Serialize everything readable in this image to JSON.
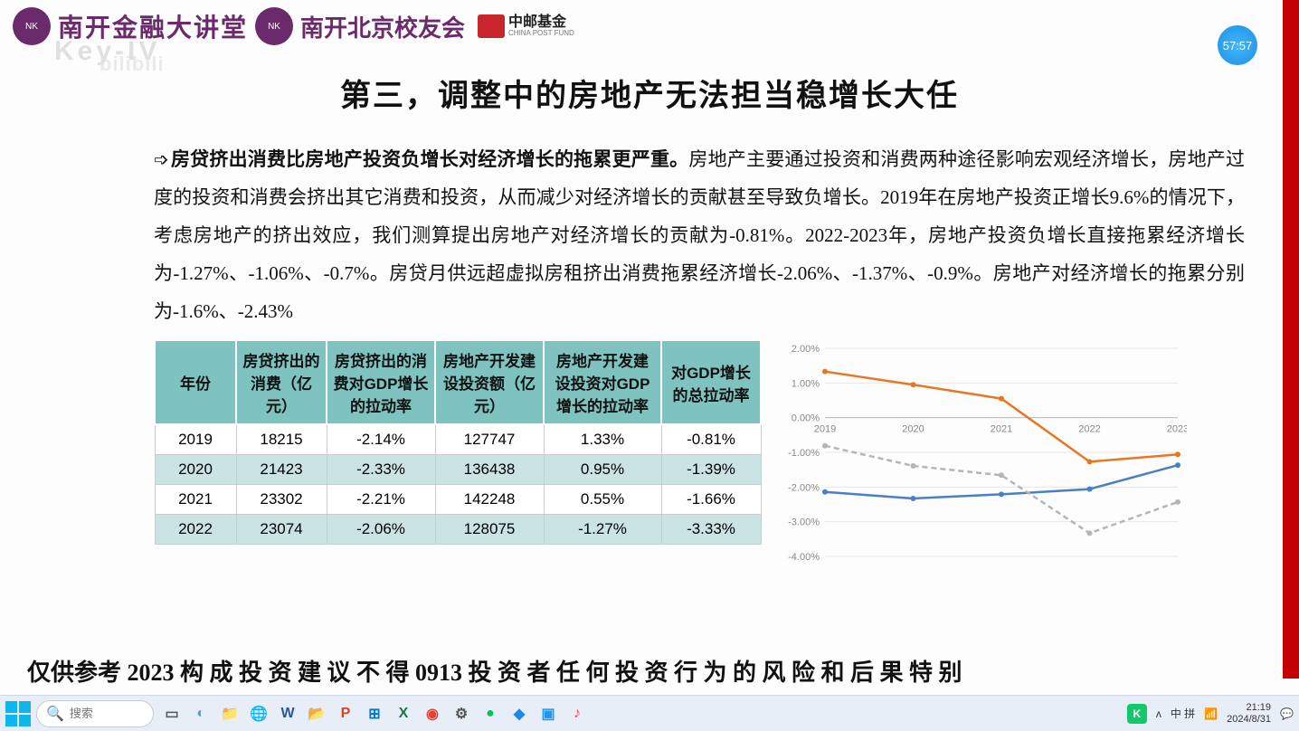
{
  "header": {
    "org1": "南开金融大讲堂",
    "org2": "南开北京校友会",
    "sponsor_cn": "中邮基金",
    "sponsor_en": "CHINA POST FUND"
  },
  "watermark1": "Key-IV",
  "watermark2": "bilibili",
  "timer": "57:57",
  "title": "第三，调整中的房地产无法担当稳增长大任",
  "paragraph_lead": "房贷挤出消费比房地产投资负增长对经济增长的拖累更严重。",
  "paragraph_body": "房地产主要通过投资和消费两种途径影响宏观经济增长，房地产过度的投资和消费会挤出其它消费和投资，从而减少对经济增长的贡献甚至导致负增长。2019年在房地产投资正增长9.6%的情况下，考虑房地产的挤出效应，我们测算提出房地产对经济增长的贡献为-0.81%。2022-2023年，房地产投资负增长直接拖累经济增长为-1.27%、-1.06%、-0.7%。房贷月供远超虚拟房租挤出消费拖累经济增长-2.06%、-1.37%、-0.9%。房地产对经济增长的拖累分别为-1.6%、-2.43%",
  "table": {
    "columns": [
      "年份",
      "房贷挤出的消费（亿元）",
      "房贷挤出的消费对GDP增长的拉动率",
      "房地产开发建设投资额（亿元）",
      "房地产开发建设投资对GDP增长的拉动率",
      "对GDP增长的总拉动率"
    ],
    "rows": [
      [
        "2019",
        "18215",
        "-2.14%",
        "127747",
        "1.33%",
        "-0.81%"
      ],
      [
        "2020",
        "21423",
        "-2.33%",
        "136438",
        "0.95%",
        "-1.39%"
      ],
      [
        "2021",
        "23302",
        "-2.21%",
        "142248",
        "0.55%",
        "-1.66%"
      ],
      [
        "2022",
        "23074",
        "-2.06%",
        "128075",
        "-1.27%",
        "-3.33%"
      ]
    ],
    "header_bg": "#7ec3bf",
    "alt_bg": "#c9e4e2"
  },
  "chart": {
    "type": "line",
    "x_categories": [
      "2019",
      "2020",
      "2021",
      "2022",
      "2023"
    ],
    "ylim": [
      -4,
      2
    ],
    "ytick_step": 1,
    "y_label_suffix": ".00%",
    "series": [
      {
        "name": "orange",
        "color": "#e87722",
        "values": [
          1.33,
          0.95,
          0.55,
          -1.27,
          -1.06
        ],
        "dash": false
      },
      {
        "name": "blue",
        "color": "#4b7fc4",
        "values": [
          -2.14,
          -2.33,
          -2.21,
          -2.06,
          -1.37
        ],
        "dash": false
      },
      {
        "name": "gray",
        "color": "#b5b5b5",
        "values": [
          -0.81,
          -1.39,
          -1.66,
          -3.33,
          -2.43
        ],
        "dash": true
      }
    ],
    "background_color": "#ffffff",
    "grid_color": "#e6e6e6",
    "label_fontsize": 11
  },
  "footer_overlay": "仅供参考  2023 构 成 投 资 建 议  不 得 0913 投 资 者 任 何 投 资 行 为 的 风 险 和 后 果   特 别",
  "taskbar": {
    "search_placeholder": "搜索",
    "icons": [
      {
        "name": "task-view",
        "glyph": "▭",
        "color": "#555"
      },
      {
        "name": "widgets",
        "glyph": "◐",
        "color": "#5aa0d8"
      },
      {
        "name": "explorer",
        "glyph": "📁",
        "color": "#f7c154"
      },
      {
        "name": "edge",
        "glyph": "🌐",
        "color": "#2d7bd1"
      },
      {
        "name": "word",
        "glyph": "W",
        "color": "#2b579a"
      },
      {
        "name": "excel-folder",
        "glyph": "📂",
        "color": "#e8a33d"
      },
      {
        "name": "powerpoint",
        "glyph": "P",
        "color": "#d24726"
      },
      {
        "name": "store",
        "glyph": "⊞",
        "color": "#0078d7"
      },
      {
        "name": "excel",
        "glyph": "X",
        "color": "#217346"
      },
      {
        "name": "chrome",
        "glyph": "◉",
        "color": "#e34133"
      },
      {
        "name": "settings",
        "glyph": "⚙",
        "color": "#555"
      },
      {
        "name": "wechat",
        "glyph": "●",
        "color": "#07c160"
      },
      {
        "name": "app-blue",
        "glyph": "◆",
        "color": "#1e88e5"
      },
      {
        "name": "app-blue2",
        "glyph": "▣",
        "color": "#2196f3"
      },
      {
        "name": "music",
        "glyph": "♪",
        "color": "#ff4040"
      }
    ],
    "tray": {
      "kugou": "K",
      "ime": "中 拼",
      "up": "ᴧ",
      "net": "📶",
      "time": "21:19",
      "date": "2024/8/31"
    }
  }
}
